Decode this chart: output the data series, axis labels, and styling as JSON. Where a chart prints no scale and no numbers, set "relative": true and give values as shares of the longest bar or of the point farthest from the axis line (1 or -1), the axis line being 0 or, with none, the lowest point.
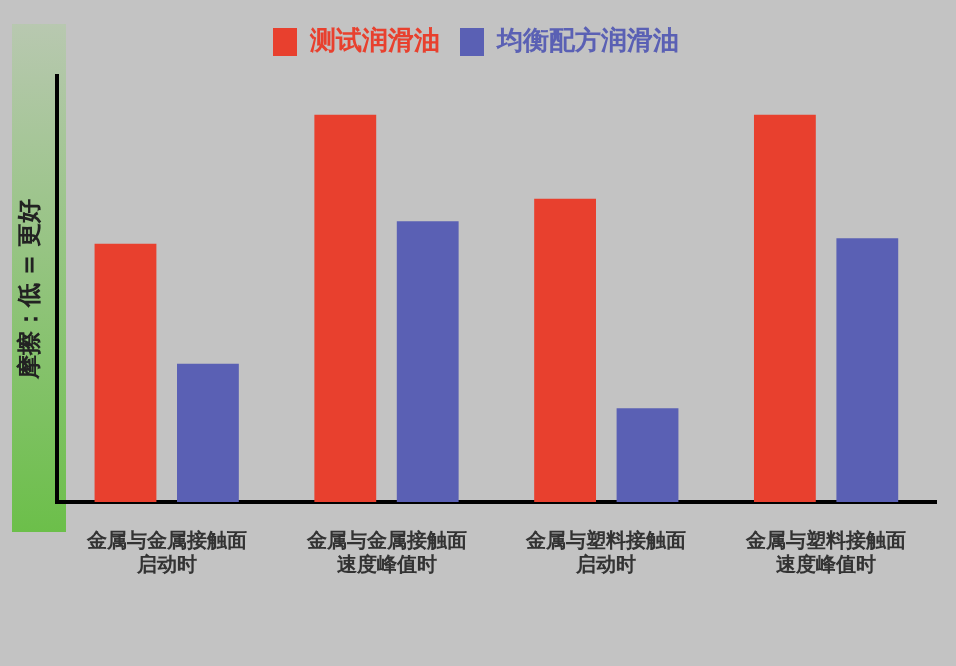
{
  "chart_data": {
    "type": "bar",
    "relative": true,
    "ylabel": "摩擦：低 = 更好",
    "categories": [
      "金属与金属接触面启动时",
      "金属与金属接触面速度峰值时",
      "金属与塑料接触面启动时",
      "金属与塑料接触面速度峰值时"
    ],
    "series": [
      {
        "name": "测试润滑油",
        "color": "#e8402e",
        "values": [
          0.667,
          1,
          0.783,
          1
        ]
      },
      {
        "name": "均衡配方润滑油",
        "color": "#5a60b4",
        "values": [
          0.357,
          0.725,
          0.242,
          0.681
        ]
      }
    ],
    "legend": "top",
    "grid": false
  }
}
